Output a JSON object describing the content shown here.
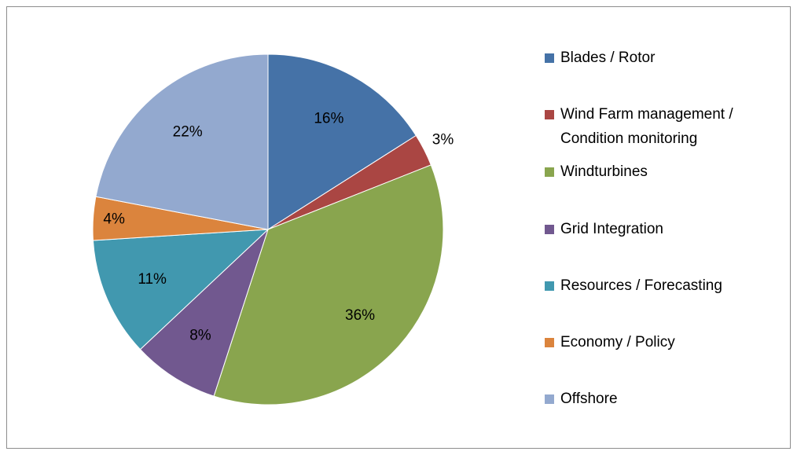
{
  "chart_data": {
    "type": "pie",
    "categories": [
      "Blades / Rotor",
      "Wind Farm management / Condition monitoring",
      "Windturbines",
      "Grid Integration",
      "Resources / Forecasting",
      "Economy / Policy",
      "Offshore"
    ],
    "values": [
      16,
      3,
      36,
      8,
      11,
      4,
      22
    ],
    "value_labels": [
      "16%",
      "3%",
      "36%",
      "8%",
      "11%",
      "4%",
      "22%"
    ],
    "colors": [
      "#4572a7",
      "#aa4643",
      "#89a54e",
      "#71588f",
      "#4198af",
      "#db843d",
      "#93a9cf"
    ],
    "legend": "right"
  }
}
